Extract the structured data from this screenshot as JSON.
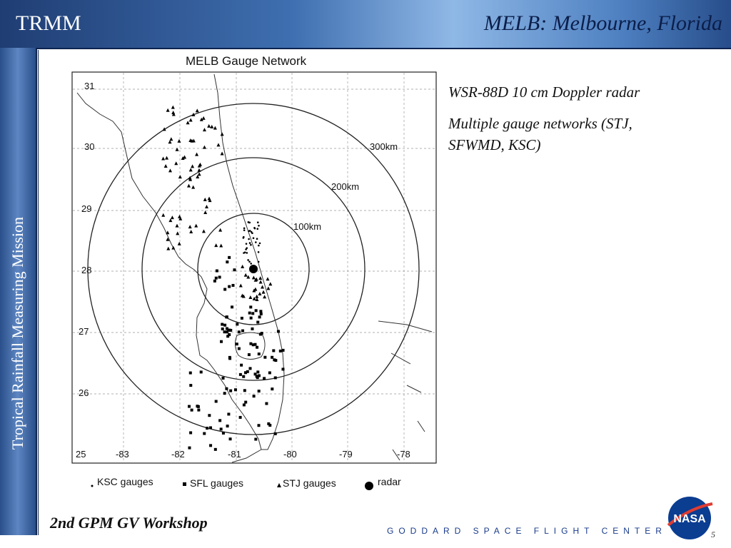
{
  "header": {
    "left_title": "TRMM",
    "right_title": "MELB: Melbourne, Florida"
  },
  "sidebar": {
    "label": "Tropical Rainfall Measuring Mission"
  },
  "map": {
    "title": "MELB Gauge Network",
    "lat_labels": [
      "31",
      "30",
      "29",
      "28",
      "27",
      "26",
      "25"
    ],
    "lon_labels": [
      "-83",
      "-82",
      "-81",
      "-80",
      "-79",
      "-78"
    ],
    "range_rings": [
      "100km",
      "200km",
      "300km"
    ],
    "legend": [
      "KSC gauges",
      "SFL gauges",
      "STJ gauges",
      "radar"
    ]
  },
  "notes": [
    "WSR-88D 10 cm Doppler radar",
    "Multiple gauge networks (STJ, SFWMD, KSC)"
  ],
  "footer": {
    "workshop": "2nd GPM GV Workshop",
    "org": "GODDARD SPACE FLIGHT CENTER",
    "page": "5",
    "logo": "NASA"
  }
}
